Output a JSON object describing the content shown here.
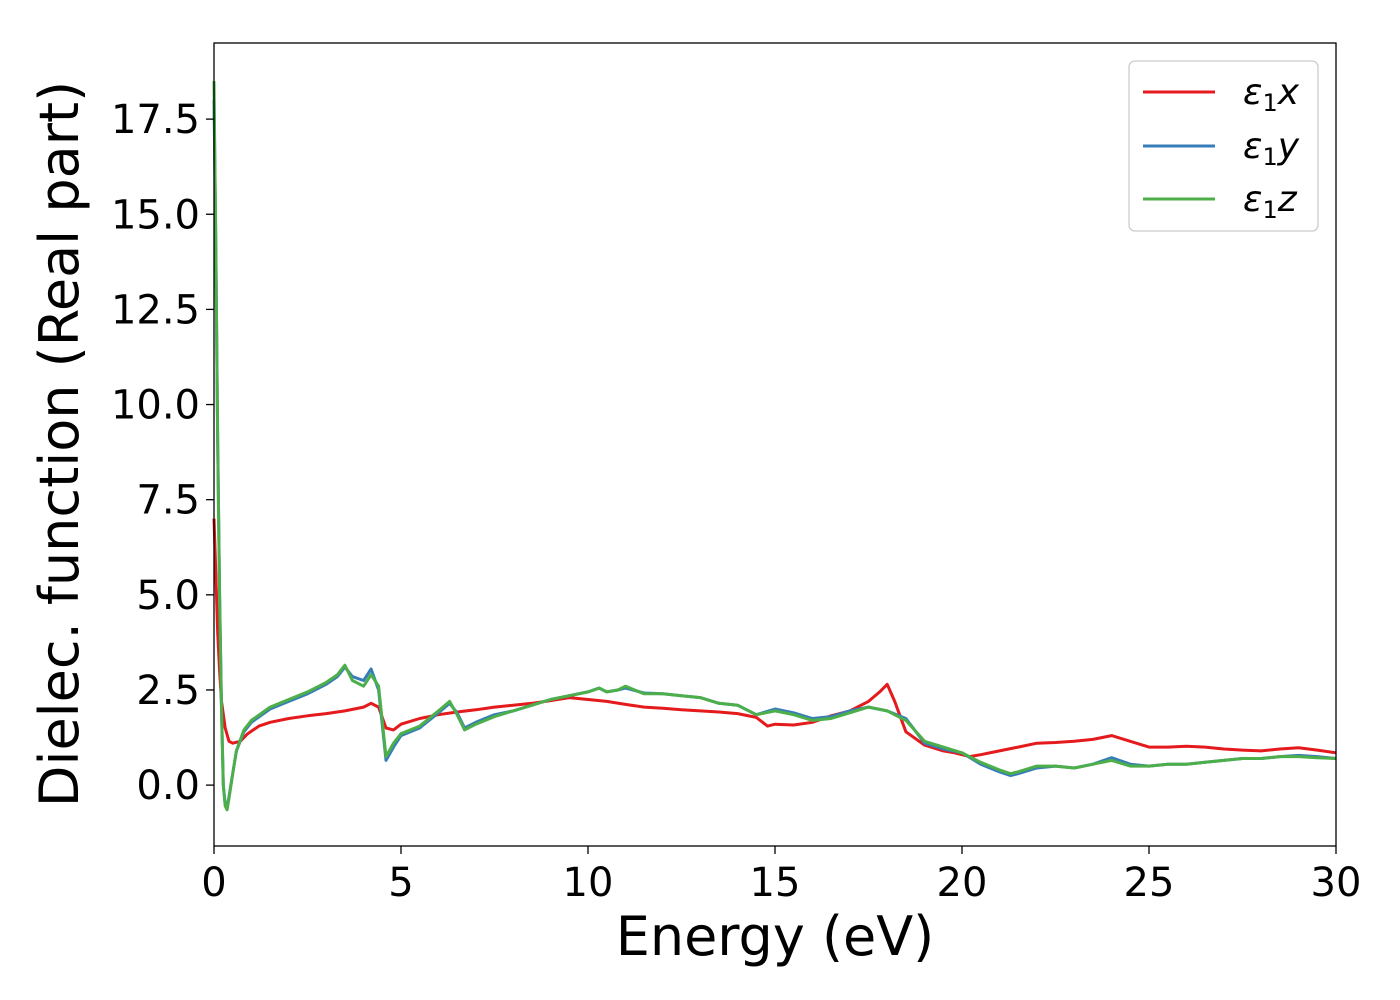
{
  "chart_data": {
    "type": "line",
    "xlabel": "Energy (eV)",
    "ylabel": "Dielec. function (Real part)",
    "xlim": [
      0,
      30
    ],
    "ylim": [
      -1.6,
      19.5
    ],
    "xticks": [
      0,
      5,
      10,
      15,
      20,
      25,
      30
    ],
    "xtick_labels": [
      "0",
      "5",
      "10",
      "15",
      "20",
      "25",
      "30"
    ],
    "yticks": [
      0,
      2.5,
      5,
      7.5,
      10,
      12.5,
      15,
      17.5
    ],
    "ytick_labels": [
      "0.0",
      "2.5",
      "5.0",
      "7.5",
      "10.0",
      "12.5",
      "15.0",
      "17.5"
    ],
    "grid": false,
    "legend_position": "top-right",
    "series": [
      {
        "name": "ε1x",
        "legend_symbol": "ε",
        "legend_sub": "1",
        "legend_var": "x",
        "color": "#e41a1c",
        "points": [
          [
            0,
            7.0
          ],
          [
            0.05,
            5.5
          ],
          [
            0.1,
            4.0
          ],
          [
            0.15,
            3.0
          ],
          [
            0.2,
            2.2
          ],
          [
            0.3,
            1.5
          ],
          [
            0.4,
            1.15
          ],
          [
            0.5,
            1.1
          ],
          [
            0.7,
            1.15
          ],
          [
            0.9,
            1.35
          ],
          [
            1.2,
            1.55
          ],
          [
            1.5,
            1.65
          ],
          [
            2,
            1.75
          ],
          [
            2.5,
            1.82
          ],
          [
            3,
            1.88
          ],
          [
            3.5,
            1.95
          ],
          [
            4,
            2.05
          ],
          [
            4.2,
            2.15
          ],
          [
            4.4,
            2.05
          ],
          [
            4.6,
            1.5
          ],
          [
            4.8,
            1.45
          ],
          [
            5,
            1.6
          ],
          [
            5.5,
            1.75
          ],
          [
            6,
            1.85
          ],
          [
            6.5,
            1.92
          ],
          [
            7,
            1.98
          ],
          [
            7.5,
            2.05
          ],
          [
            8,
            2.1
          ],
          [
            8.5,
            2.15
          ],
          [
            9,
            2.22
          ],
          [
            9.5,
            2.3
          ],
          [
            10,
            2.25
          ],
          [
            10.5,
            2.2
          ],
          [
            11,
            2.12
          ],
          [
            11.5,
            2.05
          ],
          [
            12,
            2.02
          ],
          [
            12.5,
            1.98
          ],
          [
            13,
            1.95
          ],
          [
            13.5,
            1.92
          ],
          [
            14,
            1.88
          ],
          [
            14.5,
            1.78
          ],
          [
            14.8,
            1.55
          ],
          [
            15,
            1.6
          ],
          [
            15.5,
            1.58
          ],
          [
            16,
            1.65
          ],
          [
            16.5,
            1.82
          ],
          [
            17,
            1.95
          ],
          [
            17.5,
            2.2
          ],
          [
            17.8,
            2.45
          ],
          [
            18,
            2.65
          ],
          [
            18.2,
            2.2
          ],
          [
            18.5,
            1.4
          ],
          [
            19,
            1.05
          ],
          [
            19.5,
            0.9
          ],
          [
            19.8,
            0.85
          ],
          [
            20,
            0.8
          ],
          [
            20.2,
            0.75
          ],
          [
            20.5,
            0.8
          ],
          [
            21,
            0.9
          ],
          [
            21.5,
            1.0
          ],
          [
            22,
            1.1
          ],
          [
            22.5,
            1.12
          ],
          [
            23,
            1.15
          ],
          [
            23.5,
            1.2
          ],
          [
            24,
            1.3
          ],
          [
            24.5,
            1.15
          ],
          [
            25,
            1.0
          ],
          [
            25.5,
            1.0
          ],
          [
            26,
            1.02
          ],
          [
            26.5,
            1.0
          ],
          [
            27,
            0.95
          ],
          [
            27.5,
            0.92
          ],
          [
            28,
            0.9
          ],
          [
            28.5,
            0.95
          ],
          [
            29,
            0.98
          ],
          [
            29.5,
            0.92
          ],
          [
            30,
            0.85
          ]
        ]
      },
      {
        "name": "ε1y",
        "legend_symbol": "ε",
        "legend_sub": "1",
        "legend_var": "y",
        "color": "#377eb8",
        "points": [
          [
            0,
            18.0
          ],
          [
            0.05,
            14.0
          ],
          [
            0.1,
            9.0
          ],
          [
            0.15,
            5.0
          ],
          [
            0.2,
            2.0
          ],
          [
            0.25,
            0.0
          ],
          [
            0.3,
            -0.5
          ],
          [
            0.35,
            -0.6
          ],
          [
            0.4,
            -0.3
          ],
          [
            0.5,
            0.3
          ],
          [
            0.6,
            0.9
          ],
          [
            0.8,
            1.4
          ],
          [
            1,
            1.65
          ],
          [
            1.5,
            2.0
          ],
          [
            2,
            2.2
          ],
          [
            2.5,
            2.4
          ],
          [
            3,
            2.65
          ],
          [
            3.3,
            2.85
          ],
          [
            3.5,
            3.1
          ],
          [
            3.7,
            2.85
          ],
          [
            4,
            2.75
          ],
          [
            4.2,
            3.05
          ],
          [
            4.4,
            2.5
          ],
          [
            4.6,
            0.65
          ],
          [
            4.8,
            1.0
          ],
          [
            5,
            1.3
          ],
          [
            5.5,
            1.5
          ],
          [
            6,
            1.9
          ],
          [
            6.3,
            2.15
          ],
          [
            6.5,
            1.9
          ],
          [
            6.7,
            1.5
          ],
          [
            7,
            1.65
          ],
          [
            7.5,
            1.85
          ],
          [
            8,
            1.95
          ],
          [
            8.5,
            2.1
          ],
          [
            9,
            2.25
          ],
          [
            9.5,
            2.35
          ],
          [
            10,
            2.45
          ],
          [
            10.3,
            2.55
          ],
          [
            10.5,
            2.45
          ],
          [
            10.8,
            2.5
          ],
          [
            11,
            2.55
          ],
          [
            11.5,
            2.42
          ],
          [
            12,
            2.4
          ],
          [
            12.5,
            2.35
          ],
          [
            13,
            2.3
          ],
          [
            13.5,
            2.15
          ],
          [
            14,
            2.1
          ],
          [
            14.5,
            1.85
          ],
          [
            15,
            2.0
          ],
          [
            15.5,
            1.9
          ],
          [
            16,
            1.75
          ],
          [
            16.5,
            1.8
          ],
          [
            17,
            1.95
          ],
          [
            17.5,
            2.05
          ],
          [
            18,
            1.95
          ],
          [
            18.5,
            1.75
          ],
          [
            19,
            1.1
          ],
          [
            19.5,
            0.95
          ],
          [
            20,
            0.85
          ],
          [
            20.5,
            0.55
          ],
          [
            21,
            0.35
          ],
          [
            21.3,
            0.25
          ],
          [
            21.5,
            0.3
          ],
          [
            22,
            0.45
          ],
          [
            22.5,
            0.5
          ],
          [
            23,
            0.45
          ],
          [
            23.5,
            0.55
          ],
          [
            24,
            0.72
          ],
          [
            24.5,
            0.55
          ],
          [
            25,
            0.5
          ],
          [
            25.5,
            0.55
          ],
          [
            26,
            0.55
          ],
          [
            26.5,
            0.6
          ],
          [
            27,
            0.65
          ],
          [
            27.5,
            0.7
          ],
          [
            28,
            0.7
          ],
          [
            28.5,
            0.75
          ],
          [
            29,
            0.78
          ],
          [
            29.5,
            0.75
          ],
          [
            30,
            0.7
          ]
        ]
      },
      {
        "name": "ε1z",
        "legend_symbol": "ε",
        "legend_sub": "1",
        "legend_var": "z",
        "color": "#4daf4a",
        "points": [
          [
            0,
            18.5
          ],
          [
            0.05,
            14.0
          ],
          [
            0.1,
            9.0
          ],
          [
            0.15,
            5.0
          ],
          [
            0.2,
            2.0
          ],
          [
            0.25,
            0.0
          ],
          [
            0.3,
            -0.55
          ],
          [
            0.35,
            -0.65
          ],
          [
            0.4,
            -0.35
          ],
          [
            0.5,
            0.3
          ],
          [
            0.6,
            0.9
          ],
          [
            0.8,
            1.45
          ],
          [
            1,
            1.7
          ],
          [
            1.5,
            2.05
          ],
          [
            2,
            2.25
          ],
          [
            2.5,
            2.45
          ],
          [
            3,
            2.7
          ],
          [
            3.3,
            2.9
          ],
          [
            3.5,
            3.15
          ],
          [
            3.7,
            2.75
          ],
          [
            4,
            2.6
          ],
          [
            4.2,
            2.9
          ],
          [
            4.4,
            2.6
          ],
          [
            4.6,
            0.75
          ],
          [
            4.8,
            1.1
          ],
          [
            5,
            1.35
          ],
          [
            5.5,
            1.55
          ],
          [
            6,
            1.95
          ],
          [
            6.3,
            2.2
          ],
          [
            6.5,
            1.85
          ],
          [
            6.7,
            1.45
          ],
          [
            7,
            1.6
          ],
          [
            7.5,
            1.8
          ],
          [
            8,
            1.95
          ],
          [
            8.5,
            2.1
          ],
          [
            9,
            2.25
          ],
          [
            9.5,
            2.35
          ],
          [
            10,
            2.45
          ],
          [
            10.3,
            2.55
          ],
          [
            10.5,
            2.45
          ],
          [
            10.8,
            2.5
          ],
          [
            11,
            2.6
          ],
          [
            11.5,
            2.4
          ],
          [
            12,
            2.4
          ],
          [
            12.5,
            2.35
          ],
          [
            13,
            2.3
          ],
          [
            13.5,
            2.15
          ],
          [
            14,
            2.1
          ],
          [
            14.5,
            1.85
          ],
          [
            15,
            1.95
          ],
          [
            15.5,
            1.85
          ],
          [
            16,
            1.7
          ],
          [
            16.5,
            1.75
          ],
          [
            17,
            1.9
          ],
          [
            17.5,
            2.05
          ],
          [
            18,
            1.95
          ],
          [
            18.5,
            1.7
          ],
          [
            19,
            1.15
          ],
          [
            19.5,
            1.0
          ],
          [
            20,
            0.85
          ],
          [
            20.5,
            0.6
          ],
          [
            21,
            0.4
          ],
          [
            21.3,
            0.3
          ],
          [
            21.5,
            0.35
          ],
          [
            22,
            0.5
          ],
          [
            22.5,
            0.5
          ],
          [
            23,
            0.45
          ],
          [
            23.5,
            0.55
          ],
          [
            24,
            0.65
          ],
          [
            24.5,
            0.5
          ],
          [
            25,
            0.5
          ],
          [
            25.5,
            0.55
          ],
          [
            26,
            0.55
          ],
          [
            26.5,
            0.6
          ],
          [
            27,
            0.65
          ],
          [
            27.5,
            0.7
          ],
          [
            28,
            0.7
          ],
          [
            28.5,
            0.75
          ],
          [
            29,
            0.75
          ],
          [
            29.5,
            0.72
          ],
          [
            30,
            0.7
          ]
        ]
      }
    ]
  }
}
